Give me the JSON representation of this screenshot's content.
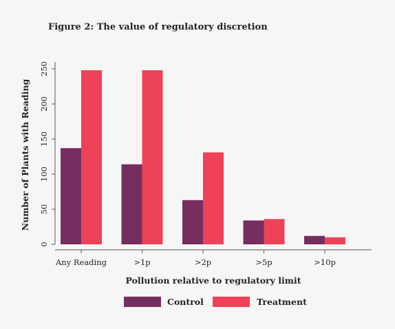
{
  "chart_data": {
    "type": "bar",
    "title": "Figure 2: The value of regulatory discretion",
    "xlabel": "Pollution relative to regulatory limit",
    "ylabel": "Number of Plants with Reading",
    "categories": [
      "Any Reading",
      ">1p",
      ">2p",
      ">5p",
      ">10p"
    ],
    "series": [
      {
        "name": "Control",
        "color": "#762e60",
        "values": [
          137,
          114,
          63,
          34,
          12
        ]
      },
      {
        "name": "Treatment",
        "color": "#ee4258",
        "values": [
          248,
          248,
          131,
          36,
          10
        ]
      }
    ],
    "ylim": [
      0,
      250
    ],
    "yticks": [
      0,
      50,
      100,
      150,
      200,
      250
    ],
    "grid": false,
    "legend_position": "bottom-center"
  }
}
